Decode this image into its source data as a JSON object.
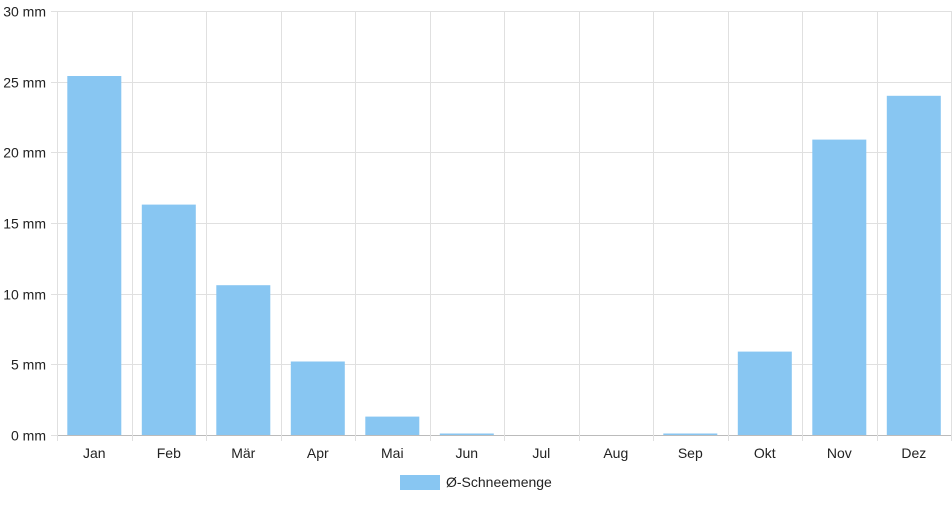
{
  "chart_data": {
    "type": "bar",
    "categories": [
      "Jan",
      "Feb",
      "Mär",
      "Apr",
      "Mai",
      "Jun",
      "Jul",
      "Aug",
      "Sep",
      "Okt",
      "Nov",
      "Dez"
    ],
    "series": [
      {
        "name": "Ø-Schneemenge",
        "values": [
          25.4,
          16.3,
          10.6,
          5.2,
          1.3,
          0.05,
          0,
          0,
          0.1,
          5.9,
          20.9,
          24.0
        ],
        "color": "#88c6f2"
      }
    ],
    "y_ticks": [
      {
        "value": 0,
        "label": "0 mm"
      },
      {
        "value": 5,
        "label": "5 mm"
      },
      {
        "value": 10,
        "label": "10 mm"
      },
      {
        "value": 15,
        "label": "15 mm"
      },
      {
        "value": 20,
        "label": "20 mm"
      },
      {
        "value": 25,
        "label": "25 mm"
      },
      {
        "value": 30,
        "label": "30 mm"
      }
    ],
    "ylim": [
      0,
      30
    ],
    "unit": "mm",
    "grid": true,
    "legend_position": "bottom-center",
    "colors": {
      "grid": "#e0e0e0",
      "axis": "#bbbbbb",
      "text": "#222222"
    }
  }
}
